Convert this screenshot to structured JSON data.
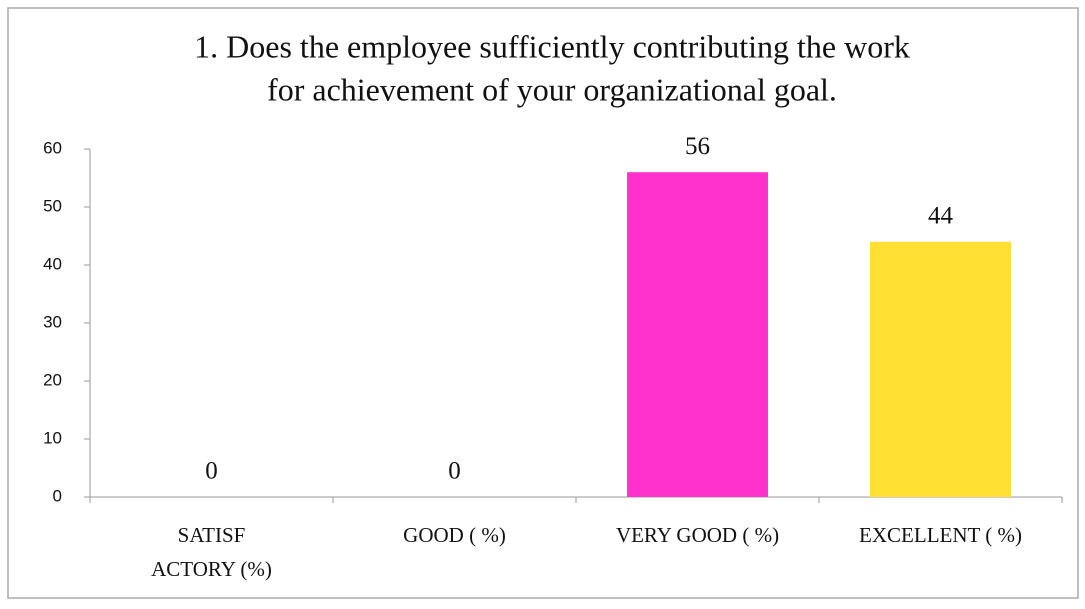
{
  "chart_data": {
    "type": "bar",
    "title": [
      "1. Does the employee sufficiently contributing the work",
      "for achievement of your organizational goal."
    ],
    "categories": [
      [
        "SATISF",
        "ACTORY (%)"
      ],
      [
        "GOOD ( %)"
      ],
      [
        "VERY GOOD ( %)"
      ],
      [
        "EXCELLENT ( %)"
      ]
    ],
    "values": [
      0,
      0,
      56,
      44
    ],
    "colors": [
      "#4472c4",
      "#c0504d",
      "#ff33cc",
      "#ffe033"
    ],
    "ylim": [
      0,
      60
    ],
    "yticks": [
      0,
      10,
      20,
      30,
      40,
      50,
      60
    ],
    "grid": false
  }
}
